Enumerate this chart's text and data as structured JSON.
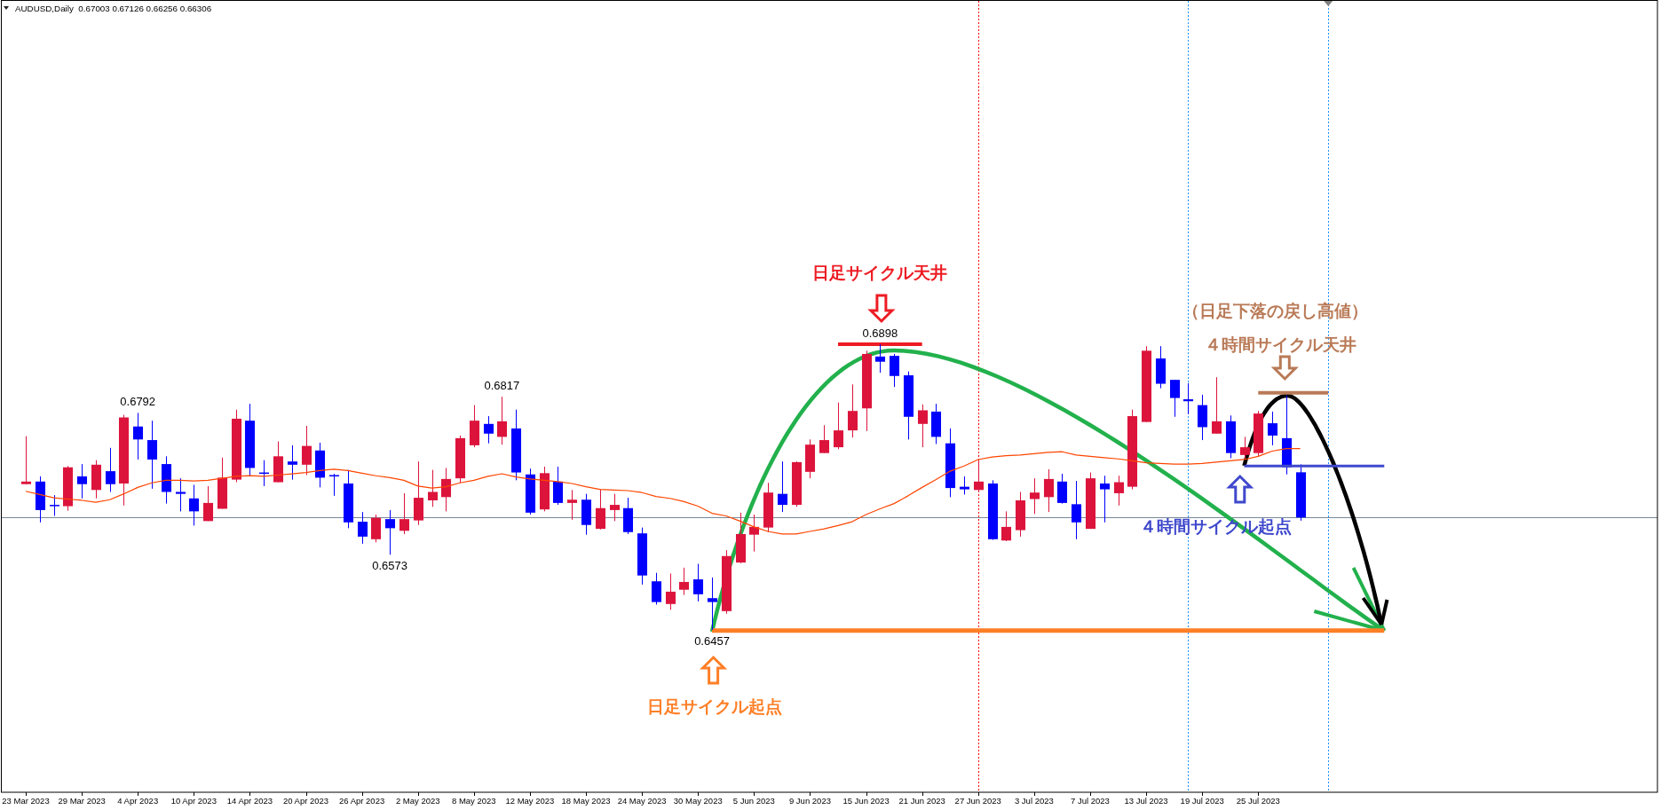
{
  "chart_data": {
    "type": "candlestick",
    "title": "AUDUSD,Daily  0.67003 0.67126 0.66256 0.66306",
    "tick_labels": "x",
    "categories": [
      "23 Mar 2023",
      null,
      null,
      null,
      "29 Mar 2023",
      null,
      null,
      null,
      "4 Apr 2023",
      null,
      null,
      null,
      "10 Apr 2023",
      null,
      null,
      null,
      "14 Apr 2023",
      null,
      null,
      null,
      "20 Apr 2023",
      null,
      null,
      null,
      "26 Apr 2023",
      null,
      null,
      null,
      "2 May 2023",
      null,
      null,
      null,
      "8 May 2023",
      null,
      null,
      null,
      "12 May 2023",
      null,
      null,
      null,
      "18 May 2023",
      null,
      null,
      null,
      "24 May 2023",
      null,
      null,
      null,
      "30 May 2023",
      null,
      null,
      null,
      "5 Jun 2023",
      null,
      null,
      null,
      "9 Jun 2023",
      null,
      null,
      null,
      "15 Jun 2023",
      null,
      null,
      null,
      "21 Jun 2023",
      null,
      null,
      null,
      "27 Jun 2023",
      null,
      null,
      null,
      "3 Jul 2023",
      null,
      null,
      null,
      "7 Jul 2023",
      null,
      null,
      null,
      "13 Jul 2023",
      null,
      null,
      null,
      "19 Jul 2023",
      null,
      null,
      null,
      "25 Jul 2023",
      null,
      null,
      null,
      null,
      null,
      null,
      null,
      null,
      null,
      null,
      null,
      null,
      null,
      null,
      null,
      null,
      null,
      null,
      null,
      null,
      null,
      null,
      null,
      null,
      null,
      null,
      null,
      null
    ],
    "ohlc": [
      [
        0.6682,
        0.6756,
        0.6682,
        0.6686
      ],
      [
        0.6686,
        0.6694,
        0.6623,
        0.6642
      ],
      [
        0.665,
        0.6665,
        0.6633,
        0.6649
      ],
      [
        0.6648,
        0.671,
        0.6641,
        0.6708
      ],
      [
        0.6694,
        0.6713,
        0.666,
        0.6682
      ],
      [
        0.6673,
        0.6719,
        0.666,
        0.6712
      ],
      [
        0.6702,
        0.6738,
        0.667,
        0.6682
      ],
      [
        0.6683,
        0.6789,
        0.6649,
        0.6785
      ],
      [
        0.6771,
        0.6792,
        0.672,
        0.6751
      ],
      [
        0.675,
        0.678,
        0.6675,
        0.672
      ],
      [
        0.6713,
        0.6725,
        0.6652,
        0.667
      ],
      [
        0.667,
        0.6691,
        0.664,
        0.6667
      ],
      [
        0.666,
        0.6681,
        0.6618,
        0.664
      ],
      [
        0.6625,
        0.6679,
        0.6625,
        0.6653
      ],
      [
        0.6644,
        0.6723,
        0.6644,
        0.6692
      ],
      [
        0.6689,
        0.6797,
        0.6685,
        0.6783
      ],
      [
        0.678,
        0.6806,
        0.6695,
        0.6707
      ],
      [
        0.67,
        0.6719,
        0.6679,
        0.6698
      ],
      [
        0.6685,
        0.6748,
        0.6685,
        0.6725
      ],
      [
        0.6717,
        0.6742,
        0.6689,
        0.6712
      ],
      [
        0.6712,
        0.6772,
        0.6696,
        0.6741
      ],
      [
        0.6734,
        0.6746,
        0.6677,
        0.6692
      ],
      [
        0.6696,
        0.6698,
        0.6664,
        0.6694
      ],
      [
        0.6683,
        0.6704,
        0.6614,
        0.6623
      ],
      [
        0.6624,
        0.6639,
        0.659,
        0.6601
      ],
      [
        0.6597,
        0.6635,
        0.6592,
        0.663
      ],
      [
        0.6628,
        0.6642,
        0.6573,
        0.6614
      ],
      [
        0.661,
        0.6668,
        0.6605,
        0.6628
      ],
      [
        0.6626,
        0.6717,
        0.6619,
        0.6661
      ],
      [
        0.6657,
        0.6704,
        0.6647,
        0.667
      ],
      [
        0.6662,
        0.6707,
        0.664,
        0.669
      ],
      [
        0.6691,
        0.6757,
        0.6684,
        0.6753
      ],
      [
        0.6742,
        0.6804,
        0.6739,
        0.678
      ],
      [
        0.6775,
        0.6787,
        0.6745,
        0.676
      ],
      [
        0.6755,
        0.6817,
        0.6743,
        0.6779
      ],
      [
        0.6768,
        0.6797,
        0.6688,
        0.67
      ],
      [
        0.6697,
        0.6706,
        0.6635,
        0.6638
      ],
      [
        0.6643,
        0.6709,
        0.664,
        0.6699
      ],
      [
        0.6686,
        0.6709,
        0.665,
        0.6653
      ],
      [
        0.6653,
        0.6673,
        0.6627,
        0.6658
      ],
      [
        0.6658,
        0.6667,
        0.6604,
        0.6619
      ],
      [
        0.6613,
        0.6674,
        0.6612,
        0.6645
      ],
      [
        0.6642,
        0.6667,
        0.6625,
        0.665
      ],
      [
        0.6645,
        0.6661,
        0.6605,
        0.6608
      ],
      [
        0.6606,
        0.6615,
        0.6527,
        0.6541
      ],
      [
        0.6532,
        0.6545,
        0.6496,
        0.65
      ],
      [
        0.6497,
        0.6544,
        0.6488,
        0.6516
      ],
      [
        0.6519,
        0.6553,
        0.6511,
        0.6531
      ],
      [
        0.6535,
        0.6559,
        0.6501,
        0.6512
      ],
      [
        0.6506,
        0.6538,
        0.6457,
        0.65
      ],
      [
        0.6486,
        0.658,
        0.6482,
        0.6571
      ],
      [
        0.6561,
        0.6638,
        0.656,
        0.6605
      ],
      [
        0.6604,
        0.6635,
        0.6578,
        0.6616
      ],
      [
        0.6615,
        0.6684,
        0.6608,
        0.6669
      ],
      [
        0.6667,
        0.6717,
        0.6639,
        0.665
      ],
      [
        0.665,
        0.6717,
        0.6647,
        0.6716
      ],
      [
        0.6701,
        0.6751,
        0.6691,
        0.6743
      ],
      [
        0.673,
        0.6773,
        0.673,
        0.675
      ],
      [
        0.6739,
        0.6808,
        0.6736,
        0.6765
      ],
      [
        0.6765,
        0.6836,
        0.6754,
        0.6795
      ],
      [
        0.6799,
        0.6888,
        0.6764,
        0.6883
      ],
      [
        0.6879,
        0.6898,
        0.6854,
        0.6871
      ],
      [
        0.688,
        0.6883,
        0.6832,
        0.6849
      ],
      [
        0.685,
        0.6856,
        0.6751,
        0.6786
      ],
      [
        0.6775,
        0.6805,
        0.6739,
        0.6796
      ],
      [
        0.6794,
        0.6806,
        0.6744,
        0.6755
      ],
      [
        0.6745,
        0.6768,
        0.6662,
        0.6676
      ],
      [
        0.6678,
        0.6694,
        0.6666,
        0.6674
      ],
      [
        0.6673,
        0.6721,
        0.667,
        0.6686
      ],
      [
        0.6683,
        0.6688,
        0.6596,
        0.6597
      ],
      [
        0.6595,
        0.664,
        0.6594,
        0.6616
      ],
      [
        0.6611,
        0.667,
        0.6601,
        0.6657
      ],
      [
        0.6659,
        0.6691,
        0.6636,
        0.6669
      ],
      [
        0.6662,
        0.6705,
        0.6639,
        0.669
      ],
      [
        0.6686,
        0.6698,
        0.6652,
        0.6653
      ],
      [
        0.6651,
        0.6687,
        0.6597,
        0.6623
      ],
      [
        0.6613,
        0.67,
        0.6613,
        0.6691
      ],
      [
        0.6683,
        0.6695,
        0.6623,
        0.6674
      ],
      [
        0.6668,
        0.6695,
        0.6649,
        0.6685
      ],
      [
        0.6678,
        0.6797,
        0.6674,
        0.6787
      ],
      [
        0.6778,
        0.6895,
        0.6778,
        0.6888
      ],
      [
        0.6876,
        0.6895,
        0.683,
        0.6837
      ],
      [
        0.6843,
        0.6843,
        0.6786,
        0.6815
      ],
      [
        0.6813,
        0.6838,
        0.679,
        0.681
      ],
      [
        0.6804,
        0.682,
        0.675,
        0.677
      ],
      [
        0.676,
        0.6847,
        0.676,
        0.6779
      ],
      [
        0.6779,
        0.6788,
        0.6722,
        0.673
      ],
      [
        0.6727,
        0.6755,
        0.6721,
        0.6739
      ],
      [
        0.673,
        0.6795,
        0.6725,
        0.6791
      ],
      [
        0.6776,
        0.6794,
        0.6742,
        0.6757
      ],
      [
        0.6753,
        0.6819,
        0.6697,
        0.6708
      ],
      [
        0.67003,
        0.67126,
        0.66256,
        0.66306
      ],
      null,
      null,
      null,
      null,
      null,
      null,
      null,
      null,
      null,
      null,
      null,
      null,
      null,
      null,
      null,
      null,
      null,
      null,
      null,
      null,
      null,
      null,
      null,
      null,
      null
    ],
    "colors": [
      "#dc143c",
      "#0000ff",
      "#0000ff",
      "#dc143c",
      "#0000ff",
      "#dc143c",
      "#0000ff",
      "#dc143c",
      "#0000ff",
      "#0000ff",
      "#0000ff",
      "#0000ff",
      "#0000ff",
      "#dc143c",
      "#dc143c",
      "#dc143c",
      "#0000ff",
      "#0000ff",
      "#dc143c",
      "#0000ff",
      "#dc143c",
      "#0000ff",
      "#0000ff",
      "#0000ff",
      "#0000ff",
      "#dc143c",
      "#0000ff",
      "#dc143c",
      "#dc143c",
      "#dc143c",
      "#dc143c",
      "#dc143c",
      "#dc143c",
      "#0000ff",
      "#dc143c",
      "#0000ff",
      "#0000ff",
      "#dc143c",
      "#0000ff",
      "#dc143c",
      "#0000ff",
      "#dc143c",
      "#dc143c",
      "#0000ff",
      "#0000ff",
      "#0000ff",
      "#dc143c",
      "#dc143c",
      "#0000ff",
      "#0000ff",
      "#dc143c",
      "#dc143c",
      "#dc143c",
      "#dc143c",
      "#0000ff",
      "#dc143c",
      "#dc143c",
      "#dc143c",
      "#dc143c",
      "#dc143c",
      "#dc143c",
      "#0000ff",
      "#0000ff",
      "#0000ff",
      "#dc143c",
      "#0000ff",
      "#0000ff",
      "#0000ff",
      "#dc143c",
      "#0000ff",
      "#dc143c",
      "#dc143c",
      "#dc143c",
      "#dc143c",
      "#0000ff",
      "#0000ff",
      "#dc143c",
      "#0000ff",
      "#dc143c",
      "#dc143c",
      "#dc143c",
      "#0000ff",
      "#0000ff",
      "#0000ff",
      "#0000ff",
      "#dc143c",
      "#0000ff",
      "#dc143c",
      "#dc143c",
      "#0000ff",
      "#0000ff",
      "#0000ff",
      null,
      null,
      null,
      null,
      null,
      null,
      null,
      null,
      null,
      null,
      null,
      null,
      null,
      null,
      null,
      null,
      null,
      null,
      null,
      null,
      null,
      null,
      null,
      null,
      null
    ],
    "series": [
      {
        "type": "line",
        "color": "#ff4500",
        "values": [
          0.6671,
          0.6666,
          0.6661,
          0.6659,
          0.6657,
          0.6654,
          0.6658,
          0.6667,
          0.6677,
          0.6684,
          0.6688,
          0.6688,
          0.6687,
          0.6688,
          0.6691,
          0.6694,
          0.6695,
          0.6694,
          0.6696,
          0.6698,
          0.67,
          0.6703,
          0.6705,
          0.6703,
          0.6699,
          0.6695,
          0.6692,
          0.6688,
          0.6679,
          0.6676,
          0.6678,
          0.6684,
          0.6688,
          0.6694,
          0.6698,
          0.6693,
          0.669,
          0.6688,
          0.6686,
          0.6683,
          0.6678,
          0.6674,
          0.6673,
          0.6672,
          0.6669,
          0.6663,
          0.666,
          0.6655,
          0.6648,
          0.6637,
          0.6633,
          0.6625,
          0.6616,
          0.6609,
          0.6605,
          0.6605,
          0.6609,
          0.6613,
          0.6618,
          0.6624,
          0.6635,
          0.6644,
          0.6652,
          0.6664,
          0.6677,
          0.6689,
          0.6702,
          0.671,
          0.672,
          0.6724,
          0.6726,
          0.6727,
          0.6729,
          0.6731,
          0.6732,
          0.6727,
          0.6725,
          0.6723,
          0.6721,
          0.6718,
          0.6715,
          0.6714,
          0.6713,
          0.6713,
          0.6714,
          0.6716,
          0.6718,
          0.672,
          0.6725,
          0.6733,
          0.6737,
          0.6737,
          null,
          null,
          null,
          null,
          null,
          null,
          null,
          null,
          null,
          null,
          null,
          null,
          null,
          null,
          null,
          null,
          null,
          null,
          null,
          null,
          null,
          null,
          null,
          null,
          null
        ]
      },
      {
        "type": "line",
        "color": "#ed1c24",
        "values": [
          null,
          null,
          null,
          null,
          null,
          null,
          null,
          null,
          null,
          null,
          null,
          null,
          null,
          null,
          null,
          null,
          null,
          null,
          null,
          null,
          null,
          null,
          null,
          null,
          null,
          null,
          null,
          null,
          null,
          null,
          null,
          null,
          null,
          null,
          null,
          null,
          null,
          null,
          null,
          null,
          null,
          null,
          null,
          null,
          null,
          null,
          null,
          null,
          null,
          null,
          null,
          null,
          null,
          null,
          null,
          null,
          null,
          null,
          0.6898,
          0.6898,
          0.6898,
          0.6898,
          0.6898,
          0.6898,
          0.6898,
          null,
          null,
          null,
          null,
          null,
          null,
          null,
          null,
          null,
          null,
          null,
          null,
          null,
          null,
          null,
          null,
          null,
          null,
          null,
          null,
          null,
          null,
          null,
          null,
          null,
          null,
          null,
          null,
          null,
          null,
          null,
          null,
          null,
          null,
          null,
          null,
          null,
          null,
          null,
          null,
          null,
          null,
          null,
          null,
          null,
          null,
          null,
          null,
          null,
          null,
          null,
          null
        ]
      },
      {
        "type": "line",
        "color": "#ff7f27",
        "values": [
          null,
          null,
          null,
          null,
          null,
          null,
          null,
          null,
          null,
          null,
          null,
          null,
          null,
          null,
          null,
          null,
          null,
          null,
          null,
          null,
          null,
          null,
          null,
          null,
          null,
          null,
          null,
          null,
          null,
          null,
          null,
          null,
          null,
          null,
          null,
          null,
          null,
          null,
          null,
          null,
          null,
          null,
          null,
          null,
          null,
          null,
          null,
          null,
          null,
          0.6456,
          0.6456,
          0.6456,
          0.6456,
          0.6456,
          0.6456,
          0.6456,
          0.6456,
          0.6456,
          0.6456,
          0.6456,
          0.6456,
          0.6456,
          0.6456,
          0.6456,
          0.6456,
          0.6456,
          0.6456,
          0.6456,
          0.6456,
          0.6456,
          0.6456,
          0.6456,
          0.6456,
          0.6456,
          0.6456,
          0.6456,
          0.6456,
          0.6456,
          0.6456,
          0.6456,
          0.6456,
          0.6456,
          0.6456,
          0.6456,
          0.6456,
          0.6456,
          0.6456,
          0.6456,
          0.6456,
          0.6456,
          0.6456,
          0.6456,
          0.6456,
          0.6456,
          0.6456,
          0.6456,
          0.6456,
          0.6456,
          null,
          null,
          null,
          null,
          null,
          null,
          null,
          null,
          null,
          null,
          null,
          null,
          null,
          null,
          null,
          null,
          null,
          null,
          null
        ]
      },
      {
        "type": "line",
        "color": "#b97a57",
        "values": [
          null,
          null,
          null,
          null,
          null,
          null,
          null,
          null,
          null,
          null,
          null,
          null,
          null,
          null,
          null,
          null,
          null,
          null,
          null,
          null,
          null,
          null,
          null,
          null,
          null,
          null,
          null,
          null,
          null,
          null,
          null,
          null,
          null,
          null,
          null,
          null,
          null,
          null,
          null,
          null,
          null,
          null,
          null,
          null,
          null,
          null,
          null,
          null,
          null,
          null,
          null,
          null,
          null,
          null,
          null,
          null,
          null,
          null,
          null,
          null,
          null,
          null,
          null,
          null,
          null,
          null,
          null,
          null,
          null,
          null,
          null,
          null,
          null,
          null,
          null,
          null,
          null,
          null,
          null,
          null,
          null,
          null,
          null,
          null,
          null,
          null,
          null,
          null,
          0.6823,
          0.6823,
          0.6823,
          0.6823,
          0.6823,
          0.6823,
          null,
          null,
          null,
          null,
          null,
          null,
          null,
          null,
          null,
          null,
          null,
          null,
          null,
          null,
          null,
          null,
          null,
          null,
          null,
          null,
          null,
          null,
          null
        ]
      },
      {
        "type": "line",
        "color": "#3f48cc",
        "values": [
          null,
          null,
          null,
          null,
          null,
          null,
          null,
          null,
          null,
          null,
          null,
          null,
          null,
          null,
          null,
          null,
          null,
          null,
          null,
          null,
          null,
          null,
          null,
          null,
          null,
          null,
          null,
          null,
          null,
          null,
          null,
          null,
          null,
          null,
          null,
          null,
          null,
          null,
          null,
          null,
          null,
          null,
          null,
          null,
          null,
          null,
          null,
          null,
          null,
          null,
          null,
          null,
          null,
          null,
          null,
          null,
          null,
          null,
          null,
          null,
          null,
          null,
          null,
          null,
          null,
          null,
          null,
          null,
          null,
          null,
          null,
          null,
          null,
          null,
          null,
          null,
          null,
          null,
          null,
          null,
          null,
          null,
          null,
          null,
          null,
          null,
          null,
          0.671,
          0.671,
          0.671,
          0.671,
          0.671,
          0.671,
          0.671,
          0.671,
          0.671,
          0.671,
          0.671,
          null,
          null,
          null,
          null,
          null,
          null,
          null,
          null,
          null,
          null,
          null,
          null,
          null,
          null,
          null,
          null,
          null,
          null,
          null
        ]
      }
    ],
    "ref_lines": [
      {
        "axis": "y",
        "value": 0.66306,
        "color": "#778899"
      },
      {
        "axis": "x",
        "value": "27 Jun 2023",
        "color": "#ff0000",
        "line_style": "dotted"
      }
    ],
    "annotations": [
      {
        "text": "0.6792",
        "x": "4 Apr 2023",
        "y": 0.6792
      },
      {
        "text": "0.6817",
        "y": 0.6817
      },
      {
        "text": "0.6573",
        "y": 0.6573
      },
      {
        "text": "0.6898",
        "y": 0.6898
      },
      {
        "text": "0.6457",
        "y": 0.6457
      },
      "日足サイクル天井",
      "（日足下落の戻し高値）",
      "４時間サイクル天井",
      "４時間サイクル起点",
      "日足サイクル起点"
    ]
  }
}
